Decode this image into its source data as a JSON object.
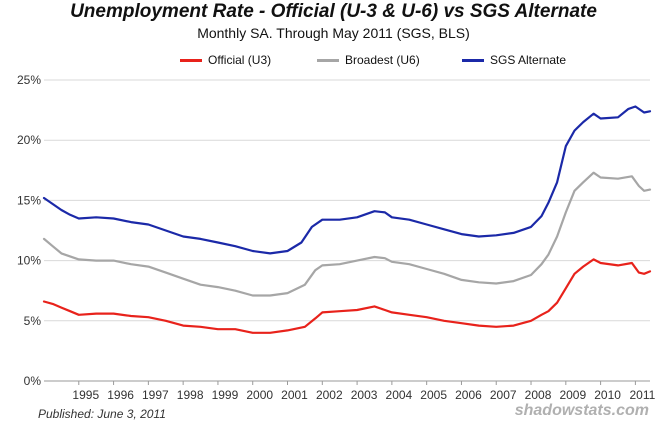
{
  "chart_data": {
    "type": "line",
    "title": "Unemployment Rate - Official (U-3 & U-6) vs SGS Alternate",
    "subtitle": "Monthly SA. Through May 2011  (SGS, BLS)",
    "xlabel": "",
    "ylabel": "",
    "xlim": [
      1994.0,
      2011.42
    ],
    "ylim": [
      0,
      25
    ],
    "y_ticks": [
      0,
      5,
      10,
      15,
      20,
      25
    ],
    "y_tick_labels": [
      "0%",
      "5%",
      "10%",
      "15%",
      "20%",
      "25%"
    ],
    "x_ticks": [
      1995,
      1996,
      1997,
      1998,
      1999,
      2000,
      2001,
      2002,
      2003,
      2004,
      2005,
      2006,
      2007,
      2008,
      2009,
      2010,
      2011
    ],
    "x_tick_labels": [
      "1995",
      "1996",
      "1997",
      "1998",
      "1999",
      "2000",
      "2001",
      "2002",
      "2003",
      "2004",
      "2005",
      "2006",
      "2007",
      "2008",
      "2009",
      "2010",
      "2011"
    ],
    "grid": "horizontal",
    "legend_position": "top",
    "series": [
      {
        "name": "Official (U3)",
        "color": "#e8221b",
        "x": [
          1994.0,
          1994.25,
          1994.5,
          1994.75,
          1995.0,
          1995.5,
          1996.0,
          1996.5,
          1997.0,
          1997.5,
          1998.0,
          1998.5,
          1999.0,
          1999.5,
          2000.0,
          2000.5,
          2001.0,
          2001.5,
          2001.8,
          2002.0,
          2002.5,
          2003.0,
          2003.5,
          2003.8,
          2004.0,
          2004.5,
          2005.0,
          2005.5,
          2006.0,
          2006.5,
          2007.0,
          2007.5,
          2008.0,
          2008.3,
          2008.5,
          2008.75,
          2009.0,
          2009.25,
          2009.5,
          2009.8,
          2010.0,
          2010.5,
          2010.9,
          2011.1,
          2011.25,
          2011.42
        ],
        "values": [
          6.6,
          6.4,
          6.1,
          5.8,
          5.5,
          5.6,
          5.6,
          5.4,
          5.3,
          5.0,
          4.6,
          4.5,
          4.3,
          4.3,
          4.0,
          4.0,
          4.2,
          4.5,
          5.2,
          5.7,
          5.8,
          5.9,
          6.2,
          5.9,
          5.7,
          5.5,
          5.3,
          5.0,
          4.8,
          4.6,
          4.5,
          4.6,
          5.0,
          5.5,
          5.8,
          6.5,
          7.7,
          8.9,
          9.5,
          10.1,
          9.8,
          9.6,
          9.8,
          9.0,
          8.9,
          9.1
        ]
      },
      {
        "name": "Broadest (U6)",
        "color": "#a6a6a6",
        "x": [
          1994.0,
          1994.25,
          1994.5,
          1995.0,
          1995.5,
          1996.0,
          1996.5,
          1997.0,
          1997.5,
          1998.0,
          1998.5,
          1999.0,
          1999.5,
          2000.0,
          2000.5,
          2001.0,
          2001.5,
          2001.8,
          2002.0,
          2002.5,
          2003.0,
          2003.5,
          2003.8,
          2004.0,
          2004.5,
          2005.0,
          2005.5,
          2006.0,
          2006.5,
          2007.0,
          2007.5,
          2008.0,
          2008.3,
          2008.5,
          2008.75,
          2009.0,
          2009.25,
          2009.5,
          2009.8,
          2010.0,
          2010.5,
          2010.9,
          2011.1,
          2011.25,
          2011.42
        ],
        "values": [
          11.8,
          11.2,
          10.6,
          10.1,
          10.0,
          10.0,
          9.7,
          9.5,
          9.0,
          8.5,
          8.0,
          7.8,
          7.5,
          7.1,
          7.1,
          7.3,
          8.0,
          9.2,
          9.6,
          9.7,
          10.0,
          10.3,
          10.2,
          9.9,
          9.7,
          9.3,
          8.9,
          8.4,
          8.2,
          8.1,
          8.3,
          8.8,
          9.7,
          10.5,
          12.0,
          14.0,
          15.8,
          16.5,
          17.3,
          16.9,
          16.8,
          17.0,
          16.2,
          15.8,
          15.9
        ]
      },
      {
        "name": "SGS Alternate",
        "color": "#1b29a8",
        "x": [
          1994.0,
          1994.25,
          1994.5,
          1994.75,
          1995.0,
          1995.5,
          1996.0,
          1996.5,
          1997.0,
          1997.5,
          1998.0,
          1998.5,
          1999.0,
          1999.5,
          2000.0,
          2000.5,
          2001.0,
          2001.4,
          2001.7,
          2002.0,
          2002.5,
          2003.0,
          2003.5,
          2003.8,
          2004.0,
          2004.5,
          2005.0,
          2005.5,
          2006.0,
          2006.5,
          2007.0,
          2007.5,
          2008.0,
          2008.3,
          2008.5,
          2008.75,
          2009.0,
          2009.25,
          2009.5,
          2009.8,
          2010.0,
          2010.5,
          2010.8,
          2011.0,
          2011.25,
          2011.42
        ],
        "values": [
          15.2,
          14.7,
          14.2,
          13.8,
          13.5,
          13.6,
          13.5,
          13.2,
          13.0,
          12.5,
          12.0,
          11.8,
          11.5,
          11.2,
          10.8,
          10.6,
          10.8,
          11.5,
          12.8,
          13.4,
          13.4,
          13.6,
          14.1,
          14.0,
          13.6,
          13.4,
          13.0,
          12.6,
          12.2,
          12.0,
          12.1,
          12.3,
          12.8,
          13.7,
          14.8,
          16.5,
          19.5,
          20.8,
          21.5,
          22.2,
          21.8,
          21.9,
          22.6,
          22.8,
          22.3,
          22.4
        ]
      }
    ]
  },
  "footer": {
    "published": "Published: June 3, 2011",
    "brand": "shadowstats.com"
  }
}
